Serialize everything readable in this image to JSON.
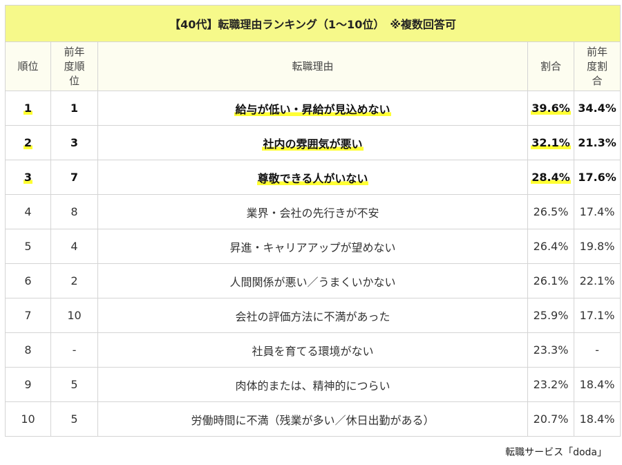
{
  "title": "【40代】転職理由ランキング（1～10位）　※複数回答可",
  "headers": [
    "順位",
    "前年度順位",
    "転職理由",
    "割合",
    "前年度割合"
  ],
  "header_lines": {
    "prev_rank": [
      "前年",
      "度順",
      "位"
    ],
    "prev_ratio": [
      "前年",
      "度割",
      "合"
    ]
  },
  "highlight_color": "#ffff33",
  "rows": [
    {
      "rank": "1",
      "prev_rank": "1",
      "reason": "給与が低い・昇給が見込めない",
      "ratio": "39.6%",
      "prev_ratio": "34.4%"
    },
    {
      "rank": "2",
      "prev_rank": "3",
      "reason": "社内の雰囲気が悪い",
      "ratio": "32.1%",
      "prev_ratio": "21.3%"
    },
    {
      "rank": "3",
      "prev_rank": "7",
      "reason": "尊敬できる人がいない",
      "ratio": "28.4%",
      "prev_ratio": "17.6%"
    },
    {
      "rank": "4",
      "prev_rank": "8",
      "reason": "業界・会社の先行きが不安",
      "ratio": "26.5%",
      "prev_ratio": "17.4%"
    },
    {
      "rank": "5",
      "prev_rank": "4",
      "reason": "昇進・キャリアアップが望めない",
      "ratio": "26.4%",
      "prev_ratio": "19.8%"
    },
    {
      "rank": "6",
      "prev_rank": "2",
      "reason": "人間関係が悪い／うまくいかない",
      "ratio": "26.1%",
      "prev_ratio": "22.1%"
    },
    {
      "rank": "7",
      "prev_rank": "10",
      "reason": "会社の評価方法に不満があった",
      "ratio": "25.9%",
      "prev_ratio": "17.1%"
    },
    {
      "rank": "8",
      "prev_rank": "-",
      "reason": "社員を育てる環境がない",
      "ratio": "23.3%",
      "prev_ratio": "-"
    },
    {
      "rank": "9",
      "prev_rank": "5",
      "reason": "肉体的または、精神的につらい",
      "ratio": "23.2%",
      "prev_ratio": "18.4%"
    },
    {
      "rank": "10",
      "prev_rank": "5",
      "reason": "労働時間に不満（残業が多い／休日出勤がある）",
      "ratio": "20.7%",
      "prev_ratio": "18.4%"
    }
  ],
  "credit": "転職サービス「doda」"
}
